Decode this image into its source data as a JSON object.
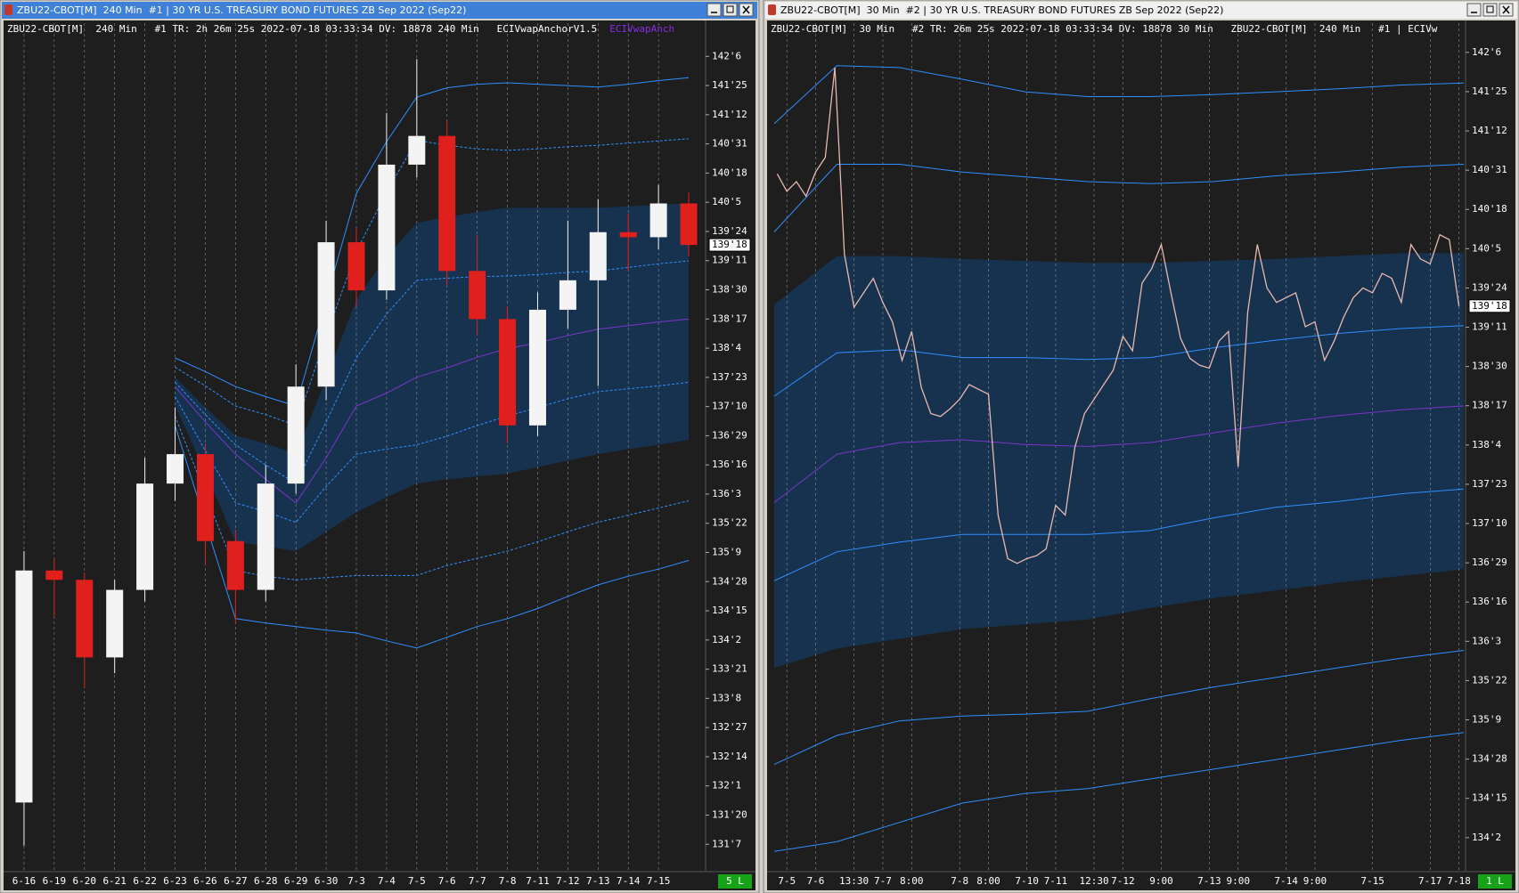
{
  "windows": [
    {
      "title": "ZBU22-CBOT[M]  240 Min  #1 | 30 YR U.S. TREASURY BOND FUTURES ZB Sep 2022 (Sep22)",
      "header": "ZBU22-CBOT[M]  240 Min   #1 TR: 2h 26m 25s 2022-07-18 03:33:34 DV: 18878 240 Min   ECIVwapAnchorV1.5",
      "header_study": "ECIVwapAnch",
      "status": "5 L"
    },
    {
      "title": "ZBU22-CBOT[M]  30 Min  #2 | 30 YR U.S. TREASURY BOND FUTURES ZB Sep 2022 (Sep22)",
      "header": "ZBU22-CBOT[M]  30 Min   #2 TR: 26m 25s 2022-07-18 03:33:34 DV: 18878 30 Min   ZBU22-CBOT[M]  240 Min   #1 | ECIVw",
      "status": "1 L"
    }
  ],
  "chart_data": [
    {
      "type": "candlestick",
      "categories": [
        "6-16",
        "6-19",
        "6-20",
        "6-21",
        "6-22",
        "6-23",
        "6-26",
        "6-27",
        "6-28",
        "6-29",
        "6-30",
        "7-3",
        "7-4",
        "7-5",
        "7-6",
        "7-7",
        "7-8",
        "7-11",
        "7-12",
        "7-13",
        "7-14",
        "7-15",
        null
      ],
      "open": [
        131.8,
        135.03,
        134.9,
        133.82,
        134.76,
        136.24,
        136.65,
        135.44,
        134.76,
        136.24,
        137.59,
        139.6,
        138.93,
        140.68,
        141.08,
        139.2,
        138.53,
        137.05,
        138.66,
        139.07,
        139.74,
        139.67,
        140.14
      ],
      "high": [
        135.3,
        135.2,
        135.0,
        134.9,
        136.6,
        137.3,
        136.8,
        135.6,
        136.5,
        137.9,
        139.9,
        139.8,
        141.4,
        142.15,
        141.3,
        139.7,
        138.7,
        138.9,
        139.9,
        140.2,
        140.0,
        140.4,
        140.3
      ],
      "low": [
        131.2,
        134.4,
        133.4,
        133.6,
        134.6,
        136.0,
        135.1,
        134.3,
        134.6,
        136.1,
        137.4,
        138.7,
        138.8,
        140.5,
        139.0,
        138.3,
        136.8,
        136.9,
        138.4,
        137.6,
        139.2,
        139.5,
        139.4
      ],
      "close": [
        135.03,
        134.9,
        133.82,
        134.76,
        136.24,
        136.65,
        135.44,
        134.76,
        136.24,
        137.59,
        139.6,
        138.93,
        140.68,
        141.08,
        139.2,
        138.53,
        137.05,
        138.66,
        139.07,
        139.74,
        139.67,
        140.14,
        139.5625
      ],
      "up_color": "#f4f4f4",
      "down_color": "#e0201c",
      "ylim": [
        130.85,
        142.65
      ],
      "yticks": [
        {
          "value": 142.1875,
          "label": "142'6"
        },
        {
          "value": 141.78125,
          "label": "141'25"
        },
        {
          "value": 141.375,
          "label": "141'12"
        },
        {
          "value": 140.96875,
          "label": "140'31"
        },
        {
          "value": 140.5625,
          "label": "140'18"
        },
        {
          "value": 140.15625,
          "label": "140'5"
        },
        {
          "value": 139.75,
          "label": "139'24"
        },
        {
          "value": 139.34375,
          "label": "139'11"
        },
        {
          "value": 138.9375,
          "label": "138'30"
        },
        {
          "value": 138.53125,
          "label": "138'17"
        },
        {
          "value": 138.125,
          "label": "138'4"
        },
        {
          "value": 137.71875,
          "label": "137'23"
        },
        {
          "value": 137.3125,
          "label": "137'10"
        },
        {
          "value": 136.90625,
          "label": "136'29"
        },
        {
          "value": 136.5,
          "label": "136'16"
        },
        {
          "value": 136.09375,
          "label": "136'3"
        },
        {
          "value": 135.6875,
          "label": "135'22"
        },
        {
          "value": 135.28125,
          "label": "135'9"
        },
        {
          "value": 134.875,
          "label": "134'28"
        },
        {
          "value": 134.46875,
          "label": "134'15"
        },
        {
          "value": 134.0625,
          "label": "134'2"
        },
        {
          "value": 133.65625,
          "label": "133'21"
        },
        {
          "value": 133.25,
          "label": "133'8"
        },
        {
          "value": 132.84375,
          "label": "132'27"
        },
        {
          "value": 132.4375,
          "label": "132'14"
        },
        {
          "value": 132.03125,
          "label": "132'1"
        },
        {
          "value": 131.625,
          "label": "131'20"
        },
        {
          "value": 131.21875,
          "label": "131'7"
        }
      ],
      "last_price": {
        "value": 139.5625,
        "label": "139'18"
      },
      "grid": true,
      "cloud": {
        "color": "#17324f",
        "upper": [
          null,
          null,
          null,
          null,
          null,
          137.72,
          137.3,
          136.91,
          136.8,
          136.65,
          137.7,
          138.8,
          139.4,
          139.87,
          139.95,
          140.02,
          140.08,
          140.08,
          140.08,
          140.08,
          140.1,
          140.12,
          140.14
        ],
        "lower": [
          null,
          null,
          null,
          null,
          null,
          137.32,
          136.4,
          135.43,
          135.37,
          135.3,
          135.57,
          135.84,
          136.05,
          136.24,
          136.3,
          136.34,
          136.38,
          136.47,
          136.56,
          136.65,
          136.72,
          136.78,
          136.85
        ]
      },
      "bands": [
        {
          "color": "#2f8fff",
          "dashed": false,
          "values": [
            null,
            null,
            null,
            null,
            null,
            137.99,
            137.8,
            137.59,
            137.45,
            137.32,
            138.8,
            140.28,
            141.0,
            141.62,
            141.75,
            141.8,
            141.82,
            141.8,
            141.78,
            141.76,
            141.8,
            141.85,
            141.89
          ]
        },
        {
          "color": "#2f8fff",
          "dashed": true,
          "values": [
            null,
            null,
            null,
            null,
            null,
            137.86,
            137.6,
            137.32,
            137.2,
            137.05,
            138.3,
            139.47,
            140.3,
            141.02,
            140.95,
            140.9,
            140.88,
            140.9,
            140.93,
            140.95,
            140.98,
            141.01,
            141.04
          ]
        },
        {
          "color": "#2f8fff",
          "dashed": true,
          "values": [
            null,
            null,
            null,
            null,
            null,
            137.65,
            137.2,
            136.78,
            136.5,
            136.24,
            137.1,
            137.99,
            138.6,
            139.07,
            139.1,
            139.12,
            139.13,
            139.15,
            139.18,
            139.2,
            139.25,
            139.3,
            139.34
          ]
        },
        {
          "color": "#7b35c9",
          "dashed": false,
          "values": [
            null,
            null,
            null,
            null,
            null,
            137.59,
            137.1,
            136.65,
            136.3,
            135.97,
            136.6,
            137.32,
            137.5,
            137.72,
            137.85,
            138.0,
            138.12,
            138.2,
            138.3,
            138.39,
            138.44,
            138.49,
            138.53
          ]
        },
        {
          "color": "#2f8fff",
          "dashed": true,
          "values": [
            null,
            null,
            null,
            null,
            null,
            137.45,
            136.7,
            135.97,
            135.85,
            135.7,
            136.2,
            136.65,
            136.72,
            136.78,
            136.9,
            137.05,
            137.18,
            137.3,
            137.42,
            137.52,
            137.56,
            137.6,
            137.65
          ]
        },
        {
          "color": "#2f8fff",
          "dashed": true,
          "values": [
            null,
            null,
            null,
            null,
            null,
            137.18,
            136.1,
            135.03,
            134.95,
            134.9,
            134.93,
            134.96,
            134.96,
            134.96,
            135.1,
            135.2,
            135.3,
            135.43,
            135.57,
            135.7,
            135.8,
            135.9,
            136.0
          ]
        },
        {
          "color": "#2f8fff",
          "dashed": false,
          "values": [
            null,
            null,
            null,
            null,
            null,
            137.05,
            135.7,
            134.36,
            134.3,
            134.25,
            134.2,
            134.16,
            134.05,
            133.95,
            134.1,
            134.25,
            134.36,
            134.5,
            134.67,
            134.83,
            134.95,
            135.05,
            135.17
          ]
        }
      ]
    },
    {
      "type": "line",
      "categories": [
        null,
        "7-5",
        null,
        null,
        "7-6",
        null,
        null,
        null,
        "13:30",
        null,
        null,
        "7-7",
        null,
        null,
        "8:00",
        null,
        null,
        null,
        null,
        "7-8",
        null,
        null,
        "8:00",
        null,
        null,
        null,
        "7-10",
        null,
        null,
        "7-11",
        null,
        null,
        null,
        "12:30",
        null,
        null,
        "7-12",
        null,
        null,
        null,
        "9:00",
        null,
        null,
        null,
        null,
        "7-13",
        null,
        null,
        "9:00",
        null,
        null,
        null,
        null,
        "7-14",
        null,
        null,
        "9:00",
        null,
        null,
        null,
        null,
        null,
        "7-15",
        null,
        null,
        null,
        null,
        null,
        "7-17",
        null,
        null,
        "7-18"
      ],
      "values": [
        140.93,
        140.75,
        140.85,
        140.7,
        140.95,
        141.1,
        142.03,
        140.1,
        139.55,
        139.7,
        139.85,
        139.6,
        139.4,
        139.0,
        139.3,
        138.72,
        138.45,
        138.42,
        138.5,
        138.6,
        138.75,
        138.7,
        138.65,
        137.4,
        136.95,
        136.9,
        136.95,
        136.98,
        137.05,
        137.5,
        137.4,
        138.1,
        138.45,
        138.6,
        138.75,
        138.9,
        139.25,
        139.1,
        139.8,
        139.95,
        140.2,
        139.7,
        139.23,
        139.02,
        138.95,
        138.92,
        139.2,
        139.3,
        137.9,
        139.5,
        140.2,
        139.75,
        139.6,
        139.65,
        139.7,
        139.35,
        139.4,
        139.0,
        139.2,
        139.45,
        139.65,
        139.75,
        139.7,
        139.9,
        139.85,
        139.6,
        140.2,
        140.05,
        140.0,
        140.3,
        140.25,
        139.5625
      ],
      "color": "#e9b8b0",
      "ylim": [
        133.72,
        142.49
      ],
      "yticks": [
        {
          "value": 142.1875,
          "label": "142'6"
        },
        {
          "value": 141.78125,
          "label": "141'25"
        },
        {
          "value": 141.375,
          "label": "141'12"
        },
        {
          "value": 140.96875,
          "label": "140'31"
        },
        {
          "value": 140.5625,
          "label": "140'18"
        },
        {
          "value": 140.15625,
          "label": "140'5"
        },
        {
          "value": 139.75,
          "label": "139'24"
        },
        {
          "value": 139.34375,
          "label": "139'11"
        },
        {
          "value": 138.9375,
          "label": "138'30"
        },
        {
          "value": 138.53125,
          "label": "138'17"
        },
        {
          "value": 138.125,
          "label": "138'4"
        },
        {
          "value": 137.71875,
          "label": "137'23"
        },
        {
          "value": 137.3125,
          "label": "137'10"
        },
        {
          "value": 136.90625,
          "label": "136'29"
        },
        {
          "value": 136.5,
          "label": "136'16"
        },
        {
          "value": 136.09375,
          "label": "136'3"
        },
        {
          "value": 135.6875,
          "label": "135'22"
        },
        {
          "value": 135.28125,
          "label": "135'9"
        },
        {
          "value": 134.875,
          "label": "134'28"
        },
        {
          "value": 134.46875,
          "label": "134'15"
        },
        {
          "value": 134.0625,
          "label": "134'2"
        }
      ],
      "last_price": {
        "value": 139.5625,
        "label": "139'18"
      },
      "grid": true,
      "cloud": {
        "color": "#17324f",
        "upper": [
          139.58,
          140.08,
          140.08,
          140.05,
          140.03,
          140.01,
          140.01,
          140.03,
          140.05,
          140.08,
          140.11,
          140.11
        ],
        "lower": [
          135.82,
          136.02,
          136.12,
          136.22,
          136.27,
          136.32,
          136.44,
          136.54,
          136.62,
          136.7,
          136.77,
          136.84
        ]
      },
      "bands": [
        {
          "color": "#2f8fff",
          "dashed": false,
          "values": [
            141.45,
            142.05,
            142.03,
            141.91,
            141.78,
            141.73,
            141.73,
            141.75,
            141.78,
            141.81,
            141.85,
            141.87
          ]
        },
        {
          "color": "#2f8fff",
          "dashed": false,
          "values": [
            140.33,
            141.03,
            141.03,
            140.95,
            140.9,
            140.85,
            140.83,
            140.85,
            140.91,
            140.95,
            141.0,
            141.03
          ]
        },
        {
          "color": "#2f8fff",
          "dashed": false,
          "values": [
            138.63,
            139.08,
            139.11,
            139.03,
            139.03,
            139.01,
            139.03,
            139.13,
            139.21,
            139.28,
            139.33,
            139.36
          ]
        },
        {
          "color": "#7b35c9",
          "dashed": false,
          "values": [
            137.53,
            138.03,
            138.15,
            138.18,
            138.13,
            138.11,
            138.15,
            138.25,
            138.35,
            138.43,
            138.49,
            138.53
          ]
        },
        {
          "color": "#2f8fff",
          "dashed": false,
          "values": [
            136.72,
            137.02,
            137.12,
            137.2,
            137.2,
            137.2,
            137.24,
            137.37,
            137.48,
            137.54,
            137.62,
            137.67
          ]
        },
        {
          "color": "#2f8fff",
          "dashed": false,
          "values": [
            134.82,
            135.12,
            135.27,
            135.32,
            135.34,
            135.37,
            135.5,
            135.62,
            135.72,
            135.82,
            135.92,
            136.0
          ]
        },
        {
          "color": "#2f8fff",
          "dashed": false,
          "values": [
            133.92,
            134.02,
            134.22,
            134.42,
            134.52,
            134.57,
            134.67,
            134.77,
            134.87,
            134.97,
            135.07,
            135.15
          ]
        }
      ]
    }
  ]
}
